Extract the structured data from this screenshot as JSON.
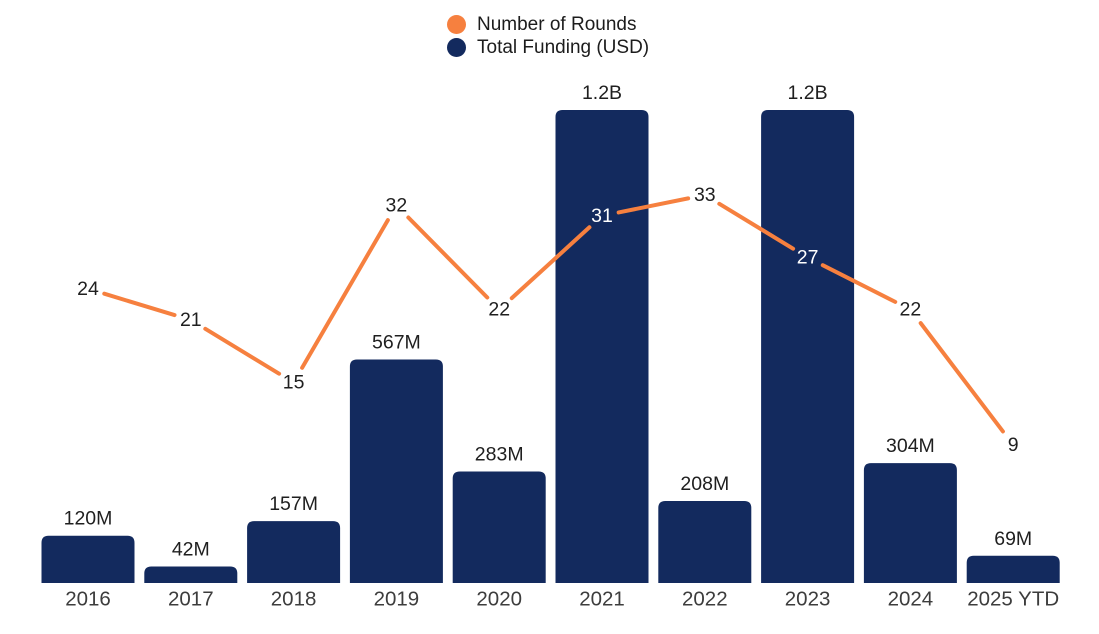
{
  "legend": {
    "items": [
      {
        "label": "Number of Rounds",
        "color": "#F6803F"
      },
      {
        "label": "Total Funding (USD)",
        "color": "#132A5E"
      }
    ]
  },
  "chart_data": {
    "type": "bar",
    "title": "",
    "categories": [
      "2016",
      "2017",
      "2018",
      "2019",
      "2020",
      "2021",
      "2022",
      "2023",
      "2024",
      "2025 YTD"
    ],
    "series": [
      {
        "name": "Number of Rounds",
        "type": "line",
        "color": "#F6803F",
        "values": [
          24,
          21,
          15,
          32,
          22,
          31,
          33,
          27,
          22,
          9
        ]
      },
      {
        "name": "Total Funding (USD)",
        "type": "bar",
        "color": "#132A5E",
        "unit": "USD",
        "values_millions": [
          120,
          42,
          157,
          567,
          283,
          1200,
          208,
          1200,
          304,
          69
        ],
        "labels": [
          "120M",
          "42M",
          "157M",
          "567M",
          "283M",
          "1.2B",
          "208M",
          "1.2B",
          "304M",
          "69M"
        ]
      }
    ],
    "legend_position": "top-center",
    "grid": false,
    "axes": {
      "x_labels_visible": true,
      "y_axis_visible": false
    },
    "bar_ylim_millions": [
      0,
      1200
    ],
    "line_range_rounds": [
      9,
      33
    ],
    "colors": {
      "bar": "#132A5E",
      "line": "#F6803F",
      "label_text": "#1F1F1F",
      "axis_text": "#3D3D3D",
      "label_on_bar": "#FFFFFF",
      "background": "#FFFFFF"
    }
  }
}
